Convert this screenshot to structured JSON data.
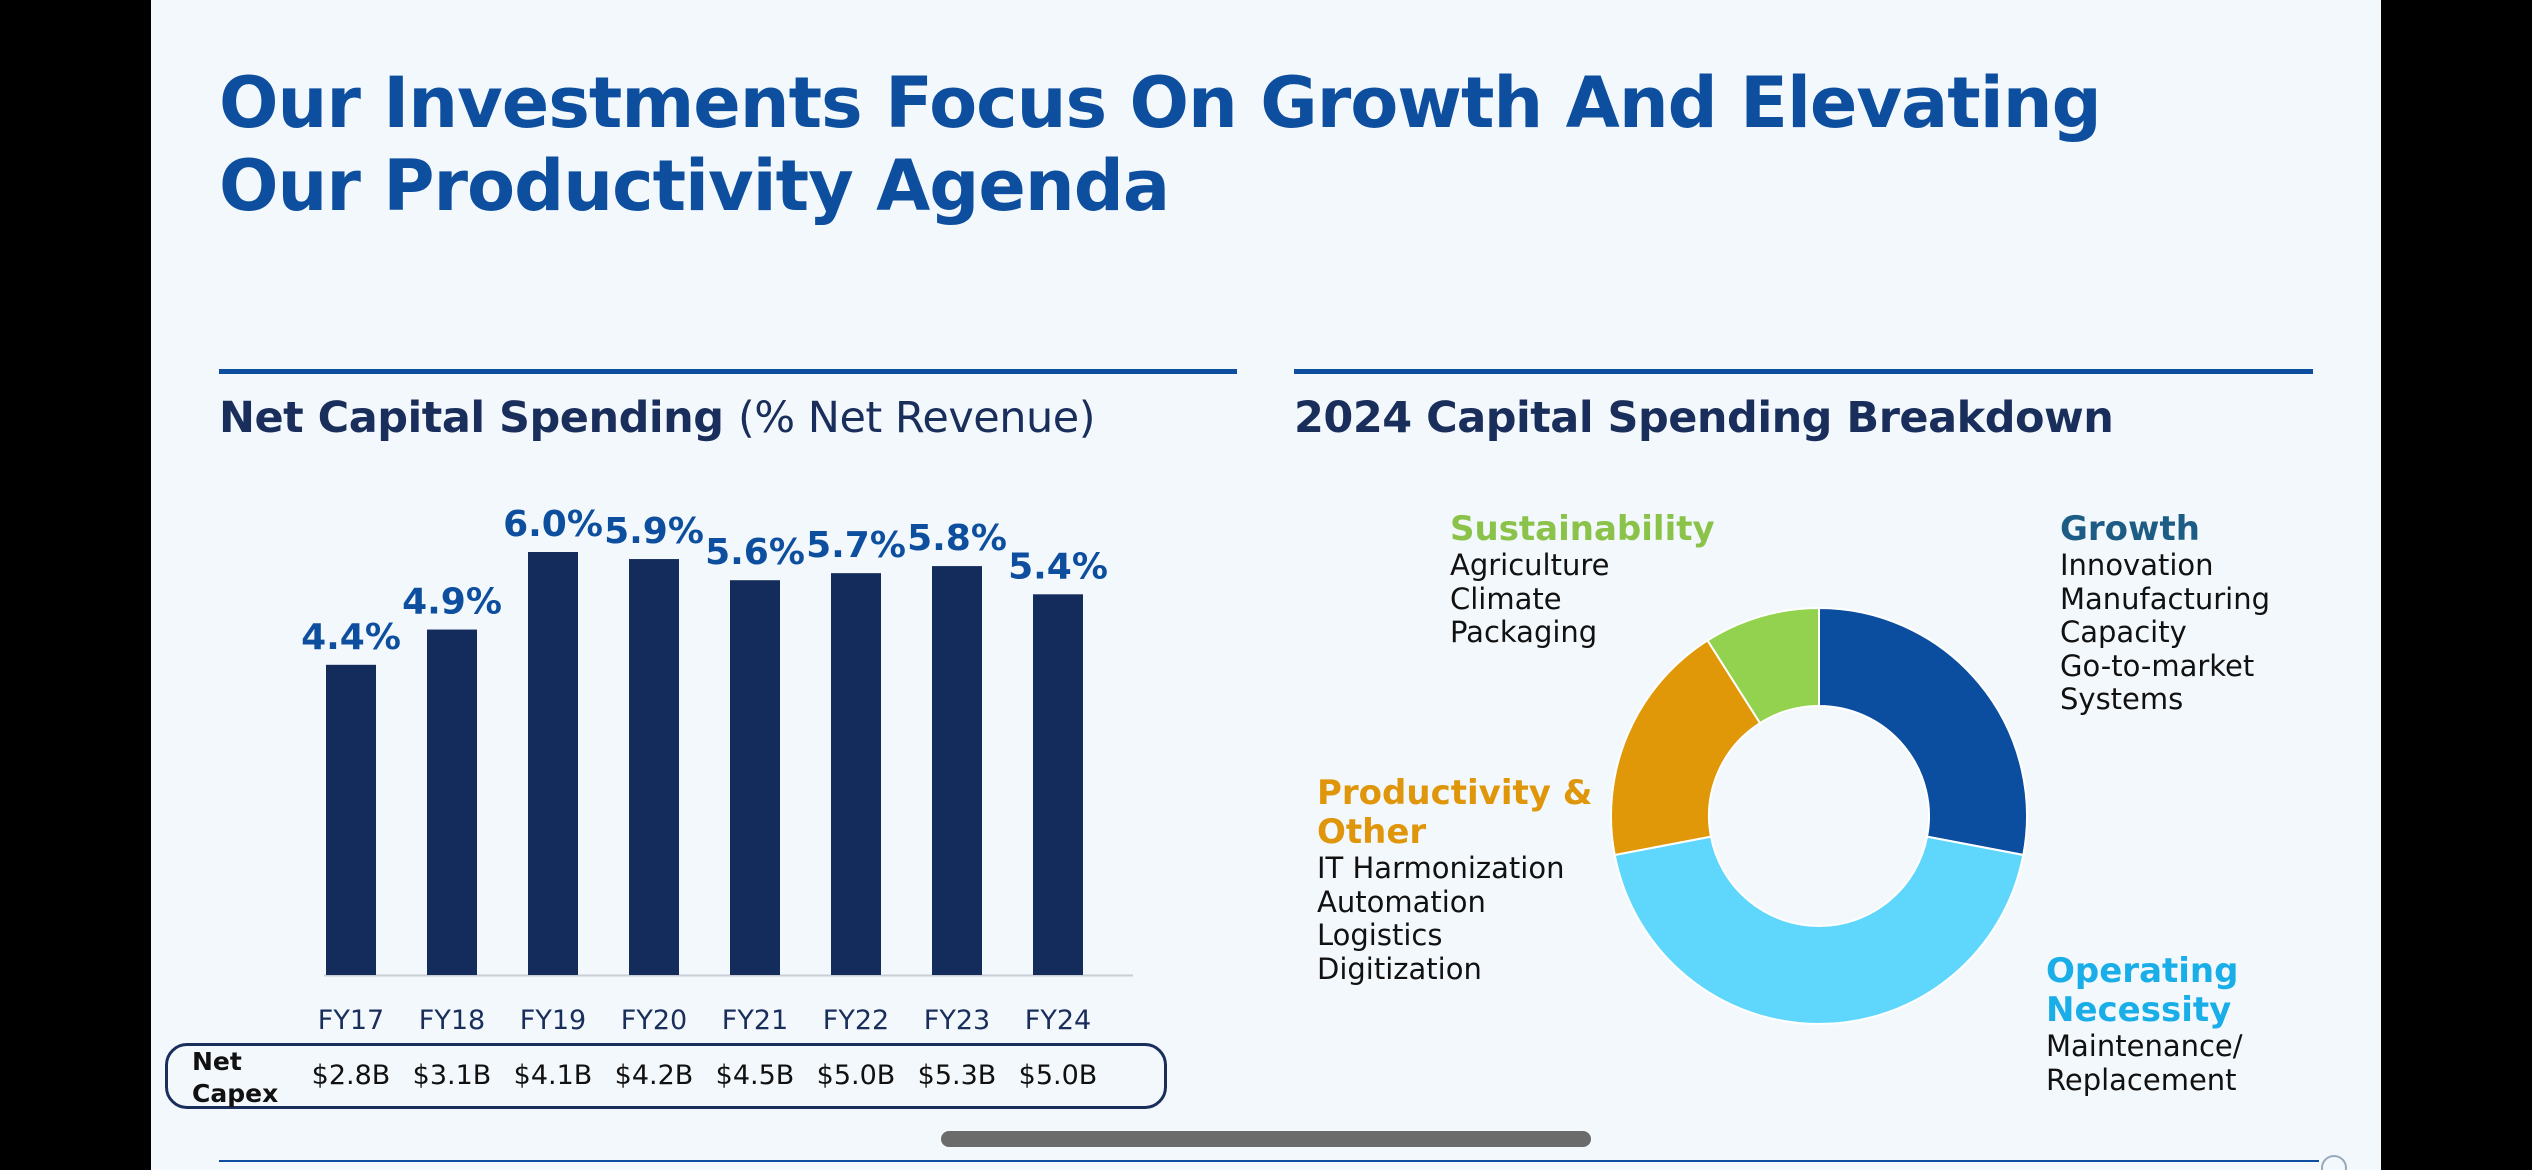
{
  "slide": {
    "title_line1": "Our Investments Focus On Growth And Elevating",
    "title_line2": "Our Productivity Agenda"
  },
  "left_panel": {
    "title_bold": "Net Capital Spending",
    "title_normal": "(% Net Revenue)",
    "capex_label_line1": "Net",
    "capex_label_line2": "Capex",
    "capex_values": [
      "$2.8B",
      "$3.1B",
      "$4.1B",
      "$4.2B",
      "$4.5B",
      "$5.0B",
      "$5.3B",
      "$5.0B"
    ]
  },
  "right_panel": {
    "title": "2024 Capital Spending Breakdown"
  },
  "chart_data": [
    {
      "type": "bar",
      "title": "Net Capital Spending (% Net Revenue)",
      "categories": [
        "FY17",
        "FY18",
        "FY19",
        "FY20",
        "FY21",
        "FY22",
        "FY23",
        "FY24"
      ],
      "values": [
        4.4,
        4.9,
        6.0,
        5.9,
        5.6,
        5.7,
        5.8,
        5.4
      ],
      "data_labels": [
        "4.4%",
        "4.9%",
        "6.0%",
        "5.9%",
        "5.6%",
        "5.7%",
        "5.8%",
        "5.4%"
      ],
      "ylim": [
        0,
        6.0
      ],
      "grid": false,
      "bar_color": "#142c5c",
      "label_color": "#0d4f9e"
    },
    {
      "type": "pie",
      "title": "2024 Capital Spending Breakdown",
      "donut": true,
      "slices": [
        {
          "label": "Growth",
          "value": 28,
          "color": "#0b4d9e",
          "items": [
            "Innovation",
            "Manufacturing",
            "Capacity",
            "Go-to-market",
            "Systems"
          ]
        },
        {
          "label": "Operating Necessity",
          "label_lines": [
            "Operating",
            "Necessity"
          ],
          "value": 44,
          "color": "#5fd7fc",
          "items": [
            "Maintenance/",
            "Replacement"
          ]
        },
        {
          "label": "Productivity & Other",
          "label_lines": [
            "Productivity &",
            "Other"
          ],
          "value": 19,
          "color": "#e09708",
          "items": [
            "IT Harmonization",
            "Automation",
            "Logistics",
            "Digitization"
          ]
        },
        {
          "label": "Sustainability",
          "value": 9,
          "color": "#92d24e",
          "items": [
            "Agriculture",
            "Climate",
            "Packaging"
          ]
        }
      ]
    }
  ]
}
